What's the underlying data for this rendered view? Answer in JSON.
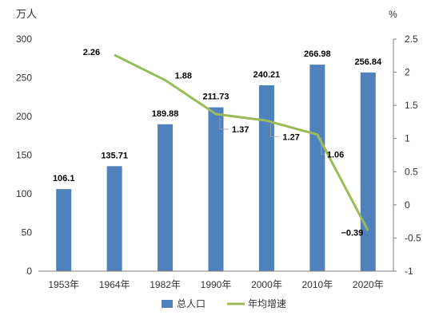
{
  "chart_data": {
    "type": "bar",
    "left_axis_unit": "万人",
    "right_axis_unit": "%",
    "categories": [
      "1953年",
      "1964年",
      "1982年",
      "1990年",
      "2000年",
      "2010年",
      "2020年"
    ],
    "y_left": {
      "range": [
        0,
        300
      ],
      "ticks": [
        "0",
        "50",
        "100",
        "150",
        "200",
        "250",
        "300"
      ]
    },
    "y_right": {
      "range": [
        -1,
        2.5
      ],
      "ticks": [
        "-1",
        "-0.5",
        "0",
        "0.5",
        "1",
        "1.5",
        "2",
        "2.5"
      ]
    },
    "series": [
      {
        "name": "总人口",
        "type": "bar",
        "axis": "left",
        "color": "#4F81BD",
        "values": [
          106.1,
          135.71,
          189.88,
          211.73,
          240.21,
          266.98,
          256.84
        ],
        "labels": [
          "106.1",
          "135.71",
          "189.88",
          "211.73",
          "240.21",
          "266.98",
          "256.84"
        ]
      },
      {
        "name": "年均增速",
        "type": "line",
        "axis": "right",
        "color": "#9BBB59",
        "values": [
          null,
          2.26,
          1.88,
          1.37,
          1.27,
          1.06,
          -0.39
        ],
        "labels": [
          "",
          "2.26",
          "1.88",
          "1.37",
          "1.27",
          "1.06",
          "−0.39"
        ]
      }
    ],
    "legend_position": "bottom",
    "grid": false
  }
}
